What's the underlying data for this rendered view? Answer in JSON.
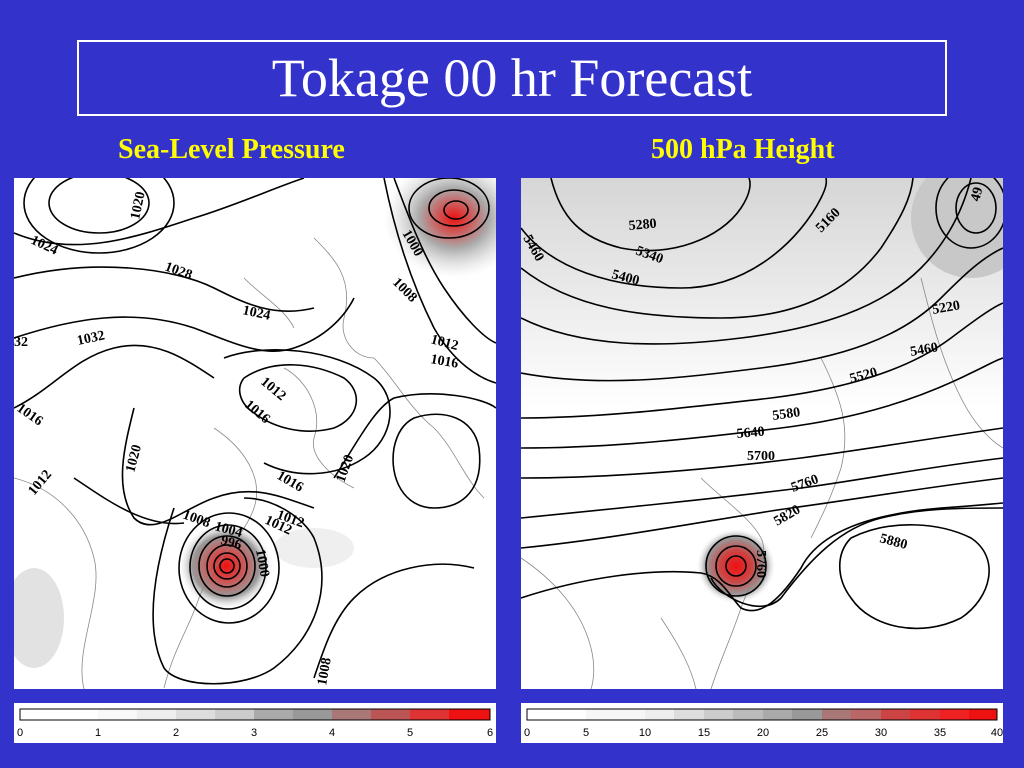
{
  "title": "Tokage 00 hr Forecast",
  "left_panel": {
    "subtitle": "Sea-Level Pressure",
    "contour_labels": [
      "1020",
      "1024",
      "1028",
      "1024",
      "1032",
      "32",
      "1012",
      "1016",
      "1016",
      "1012",
      "1020",
      "1012",
      "1016",
      "1012",
      "1020",
      "1000",
      "1008",
      "1012",
      "1016",
      "1008",
      "1004",
      "996",
      "1000",
      "1008"
    ],
    "colorbar": {
      "ticks": [
        "0",
        "1",
        "2",
        "3",
        "4",
        "5",
        "6"
      ]
    }
  },
  "right_panel": {
    "subtitle": "500 hPa Height",
    "contour_labels": [
      "5280",
      "5340",
      "5400",
      "5460",
      "5160",
      "5220",
      "5460",
      "5520",
      "5580",
      "5640",
      "5700",
      "5760",
      "5820",
      "5880",
      "5760",
      "49"
    ],
    "colorbar": {
      "ticks": [
        "0",
        "5",
        "10",
        "15",
        "20",
        "25",
        "30",
        "35",
        "40"
      ]
    }
  },
  "colors": {
    "background": "#3333cc",
    "title_text": "#ffffff",
    "subtitle_text": "#ffff00",
    "peak": "#ee1111"
  }
}
